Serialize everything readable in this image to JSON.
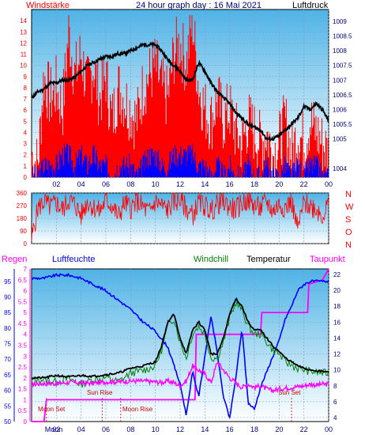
{
  "colors": {
    "red": "#ff0000",
    "blue": "#0000ff",
    "black": "#000000",
    "magenta": "#ff00ff",
    "green": "#008000",
    "navy": "#000080",
    "sky_top": "#6fc3ea",
    "sky_bottom": "#ffffff"
  },
  "chart_data": [
    {
      "type": "line",
      "title": "24 hour graph day : 16 Mai 2021",
      "left_label": "Windstärke",
      "right_label": "Luftdruck",
      "x_ticks": [
        "02",
        "04",
        "06",
        "08",
        "10",
        "12",
        "14",
        "16",
        "18",
        "20",
        "22",
        "00"
      ],
      "x_hours": [
        0,
        24
      ],
      "y_left_ticks": [
        "0",
        "1",
        "2",
        "3",
        "4",
        "5",
        "6",
        "7",
        "8",
        "9",
        "10",
        "11",
        "12",
        "13",
        "14"
      ],
      "ylim_left": [
        0,
        15
      ],
      "y_right_ticks": [
        "1004",
        "1005",
        "1005.5",
        "1006",
        "1006.5",
        "1007",
        "1007.5",
        "1008",
        "1008.5",
        "1009"
      ],
      "ylim_right": [
        1003.7,
        1009.4
      ],
      "series": [
        {
          "name": "Luftdruck",
          "axis": "right",
          "x": [
            0,
            0.5,
            1,
            1.5,
            2,
            2.5,
            3,
            3.5,
            4,
            4.5,
            5,
            5.5,
            6,
            6.5,
            7,
            7.5,
            8,
            8.5,
            9,
            9.5,
            10,
            10.5,
            11,
            11.5,
            12,
            12.5,
            13,
            13.5,
            14,
            14.5,
            15,
            15.5,
            16,
            16.5,
            17,
            17.5,
            18,
            18.5,
            19,
            19.5,
            20,
            20.5,
            21,
            21.5,
            22,
            22.5,
            23,
            23.5,
            24
          ],
          "values": [
            1006.4,
            1006.6,
            1006.7,
            1006.9,
            1006.9,
            1007.0,
            1007.0,
            1007.1,
            1007.3,
            1007.5,
            1007.6,
            1007.7,
            1007.8,
            1007.8,
            1007.9,
            1007.9,
            1008.0,
            1008.1,
            1008.2,
            1008.2,
            1008.2,
            1008.0,
            1007.7,
            1007.5,
            1007.3,
            1007.0,
            1007.0,
            1007.6,
            1007.3,
            1006.9,
            1006.6,
            1006.4,
            1006.2,
            1005.9,
            1005.7,
            1005.5,
            1005.4,
            1005.3,
            1005.0,
            1005.0,
            1005.1,
            1005.3,
            1005.5,
            1005.7,
            1006.1,
            1006.0,
            1006.2,
            1006.0,
            1005.6
          ]
        },
        {
          "name": "Windböen",
          "axis": "left",
          "x": [
            0,
            0.5,
            1,
            1.5,
            2,
            2.5,
            3,
            3.5,
            4,
            4.5,
            5,
            5.5,
            6,
            6.5,
            7,
            7.5,
            8,
            8.5,
            9,
            9.5,
            10,
            10.5,
            11,
            11.5,
            12,
            12.5,
            13,
            13.5,
            14,
            14.5,
            15,
            15.5,
            16,
            16.5,
            17,
            17.5,
            18,
            18.5,
            19,
            19.5,
            20,
            20.5,
            21,
            21.5,
            22,
            22.5,
            23,
            23.5,
            24
          ],
          "values": [
            2,
            1,
            9,
            7,
            8,
            6,
            13,
            9,
            11,
            8,
            10,
            7,
            9,
            5,
            8,
            7,
            6,
            5,
            8,
            9,
            10,
            8,
            7,
            11,
            12,
            10,
            14,
            8,
            6,
            5,
            7,
            5,
            6,
            4,
            3,
            5,
            4,
            3,
            4,
            2,
            3,
            5,
            2,
            4,
            3,
            5,
            4,
            3,
            2
          ]
        },
        {
          "name": "Windstärke",
          "axis": "left",
          "x": [
            0,
            0.5,
            1,
            1.5,
            2,
            2.5,
            3,
            3.5,
            4,
            4.5,
            5,
            5.5,
            6,
            6.5,
            7,
            7.5,
            8,
            8.5,
            9,
            9.5,
            10,
            10.5,
            11,
            11.5,
            12,
            12.5,
            13,
            13.5,
            14,
            14.5,
            15,
            15.5,
            16,
            16.5,
            17,
            17.5,
            18,
            18.5,
            19,
            19.5,
            20,
            20.5,
            21,
            21.5,
            22,
            22.5,
            23,
            23.5,
            24
          ],
          "values": [
            0,
            0,
            1,
            1,
            1,
            2,
            2,
            1,
            2,
            1,
            2,
            1,
            1,
            0,
            1,
            1,
            1,
            0,
            1,
            2,
            2,
            1,
            1,
            2,
            2,
            2,
            2,
            1,
            1,
            0,
            1,
            0,
            1,
            0,
            0,
            1,
            0,
            0,
            1,
            0,
            0,
            1,
            0,
            1,
            0,
            1,
            1,
            0,
            0
          ]
        }
      ]
    },
    {
      "type": "line",
      "title": "",
      "compass_labels": [
        "N",
        "W",
        "S",
        "O",
        "N"
      ],
      "y_ticks": [
        "360",
        "270",
        "180",
        "90",
        "0"
      ],
      "ylim": [
        0,
        360
      ],
      "series": [
        {
          "name": "Windrichtung",
          "x": [
            0,
            0.5,
            1,
            1.5,
            2,
            2.5,
            3,
            3.5,
            4,
            4.5,
            5,
            5.5,
            6,
            6.5,
            7,
            7.5,
            8,
            8.5,
            9,
            9.5,
            10,
            10.5,
            11,
            11.5,
            12,
            12.5,
            13,
            13.5,
            14,
            14.5,
            15,
            15.5,
            16,
            16.5,
            17,
            17.5,
            18,
            18.5,
            19,
            19.5,
            20,
            20.5,
            21,
            21.5,
            22,
            22.5,
            23,
            23.5,
            24
          ],
          "values": [
            30,
            250,
            300,
            260,
            290,
            240,
            310,
            280,
            200,
            300,
            260,
            230,
            310,
            270,
            190,
            290,
            250,
            300,
            260,
            220,
            300,
            270,
            240,
            300,
            310,
            250,
            200,
            290,
            270,
            230,
            280,
            300,
            260,
            240,
            290,
            310,
            270,
            250,
            300,
            230,
            280,
            260,
            300,
            100,
            290,
            270,
            250,
            200,
            280
          ]
        }
      ]
    },
    {
      "type": "line",
      "title": "",
      "legend": [
        "Regen",
        "Luftfeuchte",
        "Windchill",
        "Temperatur",
        "Taupunkt"
      ],
      "y_left_ticks": [
        "50",
        "55",
        "60",
        "65",
        "70",
        "75",
        "80",
        "85",
        "90",
        "95"
      ],
      "ylim_left": [
        50,
        99
      ],
      "y_rain_ticks": [
        "0",
        "0.5",
        "1",
        "1.5",
        "2",
        "2.5",
        "3",
        "3.5",
        "4",
        "4.5",
        "5",
        "5.5",
        "6",
        "6.5",
        "7"
      ],
      "ylim_rain": [
        0,
        7
      ],
      "y_right_ticks": [
        "4",
        "6",
        "8",
        "10",
        "12",
        "14",
        "16",
        "18",
        "20",
        "22"
      ],
      "ylim_right": [
        3.5,
        22.7
      ],
      "annotations": [
        "Moon Set",
        "Sun Rise",
        "Moon Rise",
        "Sun Set"
      ],
      "x_labels": [
        "Moon",
        "02",
        "04",
        "06",
        "08",
        "10",
        "12",
        "14",
        "16",
        "18",
        "20",
        "22",
        "00"
      ],
      "series": [
        {
          "name": "Luftfeuchte",
          "axis": "left",
          "x": [
            0,
            1,
            2,
            3,
            4,
            5,
            6,
            7,
            8,
            9,
            10,
            11,
            12,
            12.5,
            13,
            13.5,
            14,
            14.5,
            15,
            15.5,
            16,
            16.5,
            17,
            17.5,
            18,
            18.5,
            19,
            19.5,
            20,
            20.5,
            21,
            21.5,
            22,
            22.5,
            23,
            23.5,
            24
          ],
          "values": [
            96,
            96,
            97,
            97,
            96,
            94,
            92,
            89,
            86,
            82,
            79,
            74,
            62,
            52,
            66,
            58,
            71,
            84,
            72,
            58,
            51,
            64,
            80,
            56,
            54,
            61,
            66,
            71,
            76,
            83,
            87,
            92,
            94,
            95,
            95,
            95,
            95
          ]
        },
        {
          "name": "Temperatur",
          "axis": "right",
          "x": [
            0,
            1,
            2,
            3,
            4,
            5,
            6,
            7,
            8,
            9,
            10,
            10.5,
            11,
            11.5,
            12,
            12.5,
            13,
            13.5,
            14,
            14.5,
            15,
            15.5,
            16,
            16.5,
            17,
            17.5,
            18,
            18.5,
            19,
            19.5,
            20,
            20.5,
            21,
            21.5,
            22,
            22.5,
            23,
            23.5,
            24
          ],
          "values": [
            9,
            9,
            9.3,
            9.1,
            9.3,
            9.2,
            9.4,
            9.6,
            10.2,
            10.5,
            11,
            13,
            16,
            17,
            14,
            12,
            15,
            16,
            15,
            12,
            12,
            14,
            17,
            19,
            18,
            16,
            15,
            15,
            14,
            13,
            12.3,
            11.5,
            11,
            10.5,
            10.2,
            10,
            9.9,
            9.8,
            9.7
          ]
        },
        {
          "name": "Windchill",
          "axis": "right",
          "x": [
            0,
            1,
            2,
            3,
            4,
            5,
            6,
            7,
            8,
            9,
            10,
            10.5,
            11,
            11.5,
            12,
            12.5,
            13,
            13.5,
            14,
            14.5,
            15,
            15.5,
            16,
            16.5,
            17,
            17.5,
            18,
            18.5,
            19,
            19.5,
            20,
            20.5,
            21,
            21.5,
            22,
            22.5,
            23,
            23.5,
            24
          ],
          "values": [
            8.7,
            8.8,
            8.5,
            8.9,
            8.2,
            8.8,
            9.0,
            8.5,
            9.6,
            9.9,
            10.5,
            12.5,
            15.5,
            16.5,
            13.5,
            11.5,
            14.5,
            15.5,
            14.5,
            11.5,
            11.5,
            13.5,
            16.5,
            18.5,
            17.5,
            15.5,
            14.5,
            14.5,
            13.5,
            12.5,
            12,
            11,
            10.6,
            10.2,
            10,
            9.8,
            9.7,
            9.6,
            9.6
          ]
        },
        {
          "name": "Taupunkt",
          "axis": "right",
          "x": [
            0,
            1,
            2,
            3,
            4,
            5,
            6,
            7,
            8,
            9,
            10,
            10.5,
            11,
            11.5,
            12,
            12.5,
            13,
            13.5,
            14,
            14.5,
            15,
            15.5,
            16,
            16.5,
            17,
            17.5,
            18,
            18.5,
            19,
            19.5,
            20,
            20.5,
            21,
            21.5,
            22,
            22.5,
            23,
            23.5,
            24
          ],
          "values": [
            8.2,
            8.3,
            8.3,
            8.4,
            8.4,
            8.3,
            8.5,
            8.5,
            8.6,
            8.6,
            8.5,
            8.4,
            8.6,
            8.4,
            8.0,
            8.6,
            10.5,
            10.0,
            9.5,
            8.4,
            11,
            10,
            9,
            8.4,
            7.8,
            8.2,
            7.8,
            8.0,
            7.6,
            7.4,
            7.6,
            7.7,
            7.8,
            7.9,
            8.0,
            8.2,
            8.1,
            8.2,
            8.2
          ]
        },
        {
          "name": "Regen",
          "axis": "rain",
          "x": [
            0,
            1,
            1.2,
            13.2,
            13.3,
            18.5,
            18.6,
            22.3,
            22.4,
            23.5,
            24
          ],
          "values": [
            0,
            0,
            1,
            1,
            4,
            4,
            5,
            5,
            6.3,
            6.5,
            7
          ]
        }
      ]
    }
  ]
}
